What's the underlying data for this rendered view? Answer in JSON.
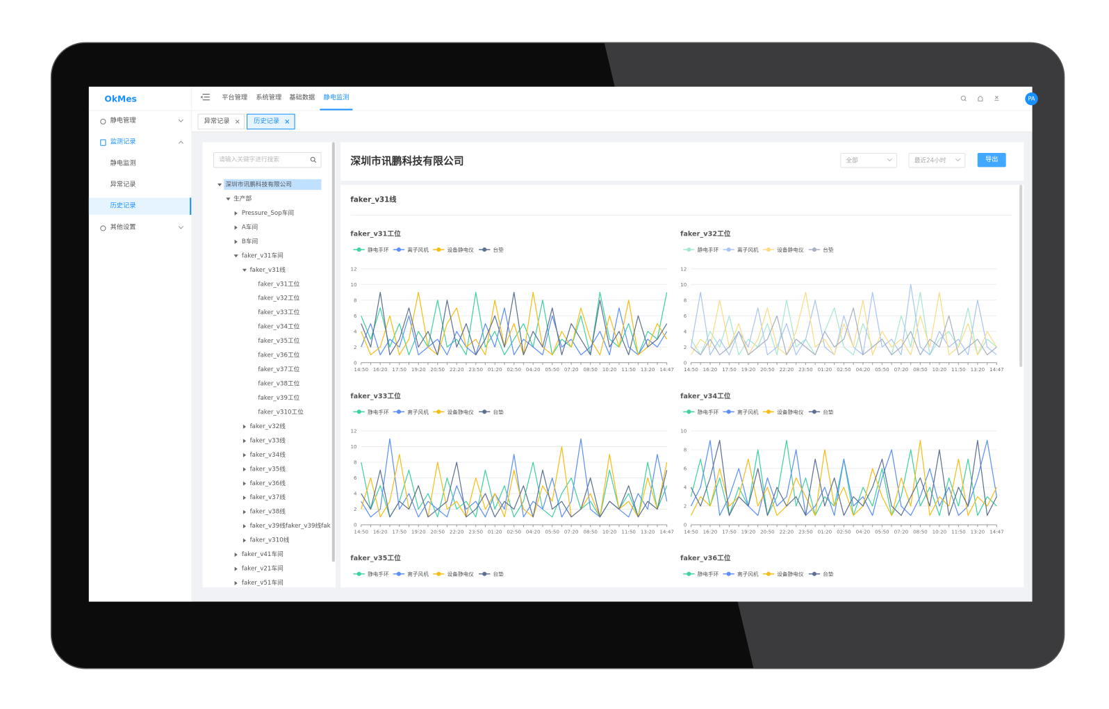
{
  "app": {
    "logo": "OkMes",
    "avatar": "PA"
  },
  "sidebar": {
    "menu": [
      {
        "label": "静电管理"
      },
      {
        "label": "监测记录",
        "children": [
          "静电监测",
          "异常记录",
          "历史记录"
        ]
      },
      {
        "label": "其他设置"
      }
    ]
  },
  "topnav": [
    "平台管理",
    "系统管理",
    "基础数据",
    "静电监测"
  ],
  "tabs": [
    "异常记录",
    "历史记录"
  ],
  "tree": {
    "placeholder": "请输入关键字进行搜索",
    "nodes": [
      {
        "label": "深圳市讯鹏科技有限公司",
        "depth": 0,
        "expanded": true
      },
      {
        "label": "生产部",
        "depth": 1,
        "expanded": true
      },
      {
        "label": "Pressure_Sop车间",
        "depth": 2,
        "expanded": false
      },
      {
        "label": "A车间",
        "depth": 2,
        "expanded": false
      },
      {
        "label": "B车间",
        "depth": 2,
        "expanded": false
      },
      {
        "label": "faker_v31车间",
        "depth": 2,
        "expanded": true
      },
      {
        "label": "faker_v31线",
        "depth": 3,
        "expanded": true
      },
      {
        "label": "faker_v31工位",
        "depth": 4
      },
      {
        "label": "faker_v32工位",
        "depth": 4
      },
      {
        "label": "faker_v33工位",
        "depth": 4
      },
      {
        "label": "faker_v34工位",
        "depth": 4
      },
      {
        "label": "faker_v35工位",
        "depth": 4
      },
      {
        "label": "faker_v36工位",
        "depth": 4
      },
      {
        "label": "faker_v37工位",
        "depth": 4
      },
      {
        "label": "faker_v38工位",
        "depth": 4
      },
      {
        "label": "faker_v39工位",
        "depth": 4
      },
      {
        "label": "faker_v310工位",
        "depth": 4
      },
      {
        "label": "faker_v32线",
        "depth": 3,
        "expanded": false
      },
      {
        "label": "faker_v33线",
        "depth": 3,
        "expanded": false
      },
      {
        "label": "faker_v34线",
        "depth": 3,
        "expanded": false
      },
      {
        "label": "faker_v35线",
        "depth": 3,
        "expanded": false
      },
      {
        "label": "faker_v36线",
        "depth": 3,
        "expanded": false
      },
      {
        "label": "faker_v37线",
        "depth": 3,
        "expanded": false
      },
      {
        "label": "faker_v38线",
        "depth": 3,
        "expanded": false
      },
      {
        "label": "faker_v39线faker_v39线fak",
        "depth": 3,
        "expanded": false
      },
      {
        "label": "faker_v310线",
        "depth": 3,
        "expanded": false
      },
      {
        "label": "faker_v41车间",
        "depth": 2,
        "expanded": false
      },
      {
        "label": "faker_v21车间",
        "depth": 2,
        "expanded": false
      },
      {
        "label": "faker_v51车间",
        "depth": 2,
        "expanded": false
      }
    ]
  },
  "panel": {
    "title": "深圳市讯鹏科技有限公司",
    "filters": [
      "全部",
      "最近24小时"
    ],
    "export": "导出",
    "section": "faker_v31线"
  },
  "chart_data": [
    {
      "type": "line",
      "title": "faker_v31工位",
      "categories": [
        "14:50",
        null,
        "16:20",
        null,
        "17:50",
        null,
        "19:20",
        null,
        "20:50",
        null,
        "22:20",
        null,
        "23:50",
        null,
        "01:20",
        null,
        "02:50",
        null,
        "04:20",
        null,
        "05:50",
        null,
        "07:20",
        null,
        "08:50",
        null,
        "10:20",
        null,
        "11:50",
        null,
        "13:20",
        null,
        "14:47"
      ],
      "ylim": [
        0,
        12
      ],
      "yticks": [
        0,
        2,
        4,
        6,
        8,
        10,
        12
      ],
      "grid": true,
      "series": [
        {
          "name": "静电手环",
          "color": "#3fd1a0",
          "values": [
            6,
            3,
            7,
            2,
            5,
            1,
            4,
            2,
            8,
            2,
            3,
            1,
            9,
            2,
            4,
            1,
            3,
            5,
            2,
            8,
            1,
            3,
            2,
            6,
            1,
            9,
            3,
            2,
            5,
            1,
            4,
            3,
            9
          ]
        },
        {
          "name": "离子风机",
          "color": "#5b8ff9",
          "values": [
            2,
            5,
            1,
            3,
            2,
            6,
            1,
            2,
            3,
            1,
            4,
            2,
            1,
            5,
            2,
            7,
            1,
            3,
            2,
            1,
            6,
            2,
            3,
            1,
            2,
            4,
            1,
            7,
            2,
            1,
            3,
            2,
            4
          ]
        },
        {
          "name": "设备静电仪",
          "color": "#f6bd16",
          "values": [
            4,
            1,
            2,
            6,
            1,
            3,
            9,
            2,
            1,
            5,
            7,
            2,
            3,
            1,
            8,
            2,
            5,
            1,
            9,
            2,
            1,
            4,
            2,
            7,
            3,
            1,
            6,
            2,
            8,
            1,
            2,
            5,
            3
          ]
        },
        {
          "name": "台垫",
          "color": "#5d7092",
          "values": [
            5,
            2,
            9,
            1,
            3,
            7,
            2,
            4,
            1,
            8,
            2,
            5,
            1,
            3,
            6,
            2,
            9,
            1,
            4,
            2,
            7,
            1,
            5,
            3,
            1,
            8,
            2,
            4,
            1,
            6,
            2,
            3,
            5
          ]
        }
      ]
    },
    {
      "type": "line",
      "title": "faker_v32工位",
      "categories": [
        "14:50",
        null,
        "16:20",
        null,
        "17:50",
        null,
        "19:20",
        null,
        "20:50",
        null,
        "22:20",
        null,
        "23:50",
        null,
        "01:20",
        null,
        "02:50",
        null,
        "04:20",
        null,
        "05:50",
        null,
        "07:20",
        null,
        "08:50",
        null,
        "10:20",
        null,
        "11:50",
        null,
        "13:20",
        null,
        "14:47"
      ],
      "ylim": [
        0,
        12
      ],
      "yticks": [
        0,
        2,
        4,
        6,
        8,
        10,
        12
      ],
      "grid": true,
      "series": [
        {
          "name": "静电手环",
          "color": "#a6e8cf",
          "values": [
            3,
            1,
            4,
            2,
            6,
            1,
            3,
            2,
            5,
            1,
            8,
            2,
            3,
            1,
            4,
            7,
            2,
            1,
            5,
            2,
            3,
            1,
            6,
            2,
            9,
            1,
            3,
            4,
            2,
            7,
            1,
            3,
            2
          ]
        },
        {
          "name": "离子风机",
          "color": "#a9c4f7",
          "values": [
            2,
            9,
            1,
            3,
            1,
            4,
            2,
            7,
            1,
            2,
            5,
            1,
            3,
            8,
            2,
            1,
            6,
            2,
            1,
            9,
            2,
            3,
            1,
            10,
            2,
            1,
            4,
            2,
            3,
            1,
            8,
            2,
            1
          ]
        },
        {
          "name": "设备静电仪",
          "color": "#f9dc86",
          "values": [
            1,
            3,
            2,
            8,
            2,
            5,
            1,
            3,
            7,
            2,
            1,
            4,
            9,
            2,
            3,
            1,
            5,
            2,
            8,
            1,
            4,
            2,
            3,
            1,
            6,
            2,
            9,
            1,
            2,
            5,
            1,
            4,
            2
          ]
        },
        {
          "name": "台垫",
          "color": "#a7b1c2",
          "values": [
            2,
            1,
            3,
            1,
            2,
            4,
            1,
            2,
            3,
            6,
            1,
            3,
            2,
            1,
            4,
            2,
            3,
            7,
            1,
            2,
            3,
            1,
            2,
            4,
            1,
            3,
            2,
            6,
            1,
            2,
            3,
            1,
            2
          ]
        }
      ]
    },
    {
      "type": "line",
      "title": "faker_v33工位",
      "categories": [
        "14:50",
        null,
        "16:20",
        null,
        "17:50",
        null,
        "19:20",
        null,
        "20:50",
        null,
        "22:20",
        null,
        "23:50",
        null,
        "01:20",
        null,
        "02:50",
        null,
        "04:20",
        null,
        "05:50",
        null,
        "07:20",
        null,
        "08:50",
        null,
        "10:20",
        null,
        "11:50",
        null,
        "13:20",
        null,
        "14:47"
      ],
      "ylim": [
        0,
        12
      ],
      "yticks": [
        0,
        2,
        4,
        6,
        8,
        10,
        12
      ],
      "grid": true,
      "series": [
        {
          "name": "静电手环",
          "color": "#3fd1a0",
          "values": [
            8,
            2,
            5,
            1,
            3,
            7,
            2,
            4,
            1,
            6,
            2,
            3,
            1,
            7,
            2,
            5,
            1,
            3,
            8,
            2,
            1,
            4,
            6,
            2,
            3,
            1,
            7,
            2,
            4,
            1,
            8,
            2,
            5
          ]
        },
        {
          "name": "离子风机",
          "color": "#5b8ff9",
          "values": [
            3,
            1,
            2,
            11,
            2,
            4,
            1,
            3,
            2,
            1,
            5,
            2,
            3,
            1,
            4,
            2,
            9,
            1,
            3,
            2,
            6,
            1,
            3,
            11,
            2,
            1,
            3,
            2,
            1,
            4,
            2,
            9,
            3
          ]
        },
        {
          "name": "设备静电仪",
          "color": "#f6bd16",
          "values": [
            2,
            6,
            1,
            3,
            9,
            2,
            5,
            1,
            8,
            2,
            3,
            1,
            6,
            2,
            4,
            1,
            7,
            2,
            1,
            5,
            3,
            10,
            1,
            2,
            4,
            1,
            9,
            2,
            3,
            1,
            6,
            2,
            8
          ]
        },
        {
          "name": "台垫",
          "color": "#5d7092",
          "values": [
            4,
            2,
            7,
            1,
            3,
            2,
            5,
            1,
            2,
            3,
            8,
            1,
            2,
            4,
            1,
            3,
            2,
            5,
            1,
            7,
            2,
            3,
            1,
            2,
            6,
            1,
            3,
            2,
            5,
            1,
            3,
            2,
            7
          ]
        }
      ]
    },
    {
      "type": "line",
      "title": "faker_v34工位",
      "categories": [
        "14:50",
        null,
        "16:20",
        null,
        "17:50",
        null,
        "19:20",
        null,
        "20:50",
        null,
        "22:20",
        null,
        "23:50",
        null,
        "01:20",
        null,
        "02:50",
        null,
        "04:20",
        null,
        "05:50",
        null,
        "07:20",
        null,
        "08:50",
        null,
        "10:20",
        null,
        "11:50",
        null,
        "13:20",
        null,
        "14:47"
      ],
      "ylim": [
        0,
        10
      ],
      "yticks": [
        0,
        2,
        4,
        6,
        8,
        10
      ],
      "grid": true,
      "series": [
        {
          "name": "静电手环",
          "color": "#3fd1a0",
          "values": [
            3,
            7,
            2,
            5,
            1,
            4,
            2,
            8,
            1,
            3,
            9,
            2,
            5,
            1,
            3,
            2,
            7,
            1,
            4,
            2,
            6,
            1,
            3,
            8,
            2,
            4,
            1,
            5,
            2,
            7,
            1,
            3,
            2
          ]
        },
        {
          "name": "离子风机",
          "color": "#5b8ff9",
          "values": [
            2,
            4,
            9,
            1,
            3,
            6,
            2,
            1,
            5,
            2,
            3,
            8,
            1,
            2,
            4,
            1,
            7,
            2,
            3,
            1,
            5,
            8,
            2,
            1,
            3,
            6,
            2,
            4,
            1,
            2,
            5,
            9,
            3
          ]
        },
        {
          "name": "设备静电仪",
          "color": "#f6bd16",
          "values": [
            1,
            3,
            2,
            6,
            2,
            3,
            7,
            2,
            4,
            1,
            2,
            5,
            3,
            1,
            8,
            2,
            4,
            1,
            2,
            6,
            3,
            1,
            5,
            2,
            9,
            1,
            3,
            2,
            7,
            1,
            3,
            2,
            4
          ]
        },
        {
          "name": "台垫",
          "color": "#5d7092",
          "values": [
            4,
            2,
            5,
            9,
            1,
            3,
            2,
            6,
            1,
            4,
            2,
            3,
            1,
            7,
            2,
            5,
            1,
            3,
            2,
            4,
            7,
            2,
            1,
            3,
            5,
            2,
            8,
            1,
            4,
            2,
            9,
            1,
            3
          ]
        }
      ]
    },
    {
      "type": "line",
      "title": "faker_v35工位",
      "series": [
        {
          "name": "静电手环",
          "color": "#3fd1a0"
        },
        {
          "name": "离子风机",
          "color": "#5b8ff9"
        },
        {
          "name": "设备静电仪",
          "color": "#f6bd16"
        },
        {
          "name": "台垫",
          "color": "#5d7092"
        }
      ]
    },
    {
      "type": "line",
      "title": "faker_v36工位",
      "series": [
        {
          "name": "静电手环",
          "color": "#3fd1a0"
        },
        {
          "name": "离子风机",
          "color": "#5b8ff9"
        },
        {
          "name": "设备静电仪",
          "color": "#f6bd16"
        },
        {
          "name": "台垫",
          "color": "#5d7092"
        }
      ]
    }
  ]
}
